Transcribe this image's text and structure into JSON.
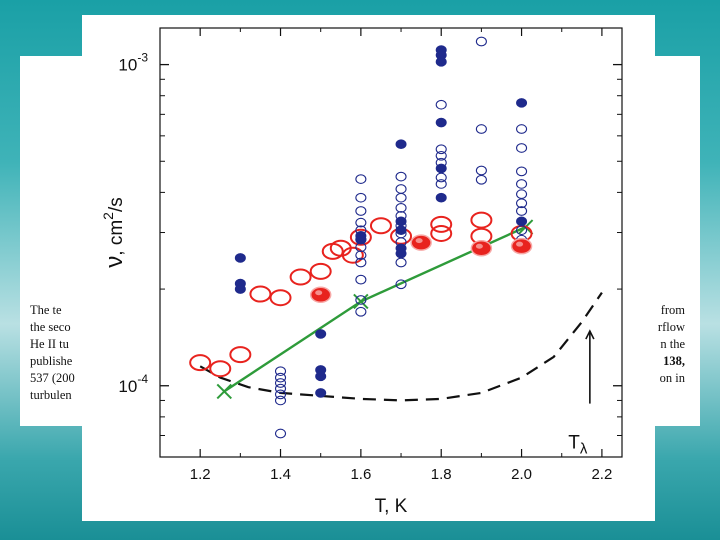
{
  "background_text": {
    "left_lines": [
      "The te",
      "the seco",
      "He II tu",
      "publishe",
      "537 (200",
      "turbulen"
    ],
    "right_lines": [
      "from",
      "rflow",
      "n the",
      "138,",
      "on in"
    ]
  },
  "chart_data": {
    "type": "scatter",
    "title": "",
    "xlabel": "T, K",
    "ylabel": "ν , cm²/s",
    "ylabel_parts": {
      "nu": "ν",
      "unit": ", cm",
      "exp": "2",
      "rest": "/s"
    },
    "xlim": [
      1.1,
      2.25
    ],
    "ylim": [
      6e-05,
      0.0013
    ],
    "yscale": "log",
    "x_ticks": [
      "1.2",
      "1.4",
      "1.6",
      "1.8",
      "2.0",
      "2.2"
    ],
    "x_tick_values": [
      1.2,
      1.4,
      1.6,
      1.8,
      2.0,
      2.2
    ],
    "y_ticks": [
      {
        "value": 0.0001,
        "mantissa": "10",
        "exp": "-4"
      },
      {
        "value": 0.001,
        "mantissa": "10",
        "exp": "-3"
      }
    ],
    "grid": false,
    "annotation": {
      "base": "T",
      "sub": "λ",
      "x": 2.17,
      "y": 8.5e-05
    },
    "colors": {
      "blue": "#1f2a8c",
      "red": "#e8231e",
      "green": "#2e9b3a",
      "dashed": "#111111"
    },
    "series": [
      {
        "style": "blue-filled",
        "points": [
          [
            1.3,
            0.00025
          ],
          [
            1.3,
            0.000208
          ],
          [
            1.3,
            0.0002
          ],
          [
            1.5,
            0.000145
          ],
          [
            1.5,
            0.000112
          ],
          [
            1.5,
            0.000107
          ],
          [
            1.5,
            9.5e-05
          ],
          [
            1.6,
            0.000293
          ],
          [
            1.6,
            0.000286
          ],
          [
            1.7,
            0.000565
          ],
          [
            1.7,
            0.000325
          ],
          [
            1.7,
            0.000305
          ],
          [
            1.7,
            0.000268
          ],
          [
            1.7,
            0.000258
          ],
          [
            1.8,
            0.00111
          ],
          [
            1.8,
            0.00107
          ],
          [
            1.8,
            0.00102
          ],
          [
            1.8,
            0.00066
          ],
          [
            1.8,
            0.000475
          ],
          [
            1.8,
            0.000385
          ],
          [
            2.0,
            0.00076
          ],
          [
            2.0,
            0.000325
          ]
        ]
      },
      {
        "style": "blue-open",
        "points": [
          [
            1.4,
            0.000111
          ],
          [
            1.4,
            0.000106
          ],
          [
            1.4,
            0.000102
          ],
          [
            1.4,
            9.8e-05
          ],
          [
            1.4,
            9.4e-05
          ],
          [
            1.4,
            9e-05
          ],
          [
            1.4,
            7.1e-05
          ],
          [
            1.6,
            0.00044
          ],
          [
            1.6,
            0.000385
          ],
          [
            1.6,
            0.00035
          ],
          [
            1.6,
            0.000322
          ],
          [
            1.6,
            0.000305
          ],
          [
            1.6,
            0.000285
          ],
          [
            1.6,
            0.00027
          ],
          [
            1.6,
            0.000255
          ],
          [
            1.6,
            0.000242
          ],
          [
            1.6,
            0.000214
          ],
          [
            1.6,
            0.000185
          ],
          [
            1.6,
            0.00017
          ],
          [
            1.7,
            0.000448
          ],
          [
            1.7,
            0.00041
          ],
          [
            1.7,
            0.000385
          ],
          [
            1.7,
            0.000358
          ],
          [
            1.7,
            0.000338
          ],
          [
            1.7,
            0.000315
          ],
          [
            1.7,
            0.000298
          ],
          [
            1.7,
            0.00028
          ],
          [
            1.7,
            0.000242
          ],
          [
            1.7,
            0.000207
          ],
          [
            1.8,
            0.00075
          ],
          [
            1.8,
            0.000545
          ],
          [
            1.8,
            0.00052
          ],
          [
            1.8,
            0.000495
          ],
          [
            1.8,
            0.000445
          ],
          [
            1.8,
            0.000425
          ],
          [
            1.9,
            0.00118
          ],
          [
            1.9,
            0.00063
          ],
          [
            1.9,
            0.000468
          ],
          [
            1.9,
            0.000438
          ],
          [
            2.0,
            0.00063
          ],
          [
            2.0,
            0.00055
          ],
          [
            2.0,
            0.000465
          ],
          [
            2.0,
            0.000425
          ],
          [
            2.0,
            0.000395
          ],
          [
            2.0,
            0.00037
          ],
          [
            2.0,
            0.00035
          ],
          [
            2.0,
            0.000305
          ],
          [
            2.0,
            0.000285
          ],
          [
            2.0,
            0.000268
          ]
        ]
      },
      {
        "style": "red-open",
        "points": [
          [
            1.2,
            0.000118
          ],
          [
            1.25,
            0.000113
          ],
          [
            1.3,
            0.000125
          ],
          [
            1.35,
            0.000193
          ],
          [
            1.4,
            0.000188
          ],
          [
            1.45,
            0.000218
          ],
          [
            1.5,
            0.000227
          ],
          [
            1.53,
            0.000262
          ],
          [
            1.55,
            0.000268
          ],
          [
            1.58,
            0.000255
          ],
          [
            1.6,
            0.00029
          ],
          [
            1.65,
            0.000315
          ],
          [
            1.7,
            0.000292
          ],
          [
            1.8,
            0.000318
          ],
          [
            1.8,
            0.000298
          ],
          [
            1.9,
            0.000328
          ],
          [
            1.9,
            0.000292
          ],
          [
            2.0,
            0.000298
          ]
        ]
      },
      {
        "style": "red-filled",
        "points": [
          [
            1.5,
            0.000192
          ],
          [
            1.75,
            0.000279
          ],
          [
            1.9,
            0.000268
          ],
          [
            2.0,
            0.000272
          ]
        ]
      },
      {
        "style": "green-line-x",
        "points": [
          [
            1.26,
            9.6e-05
          ],
          [
            1.6,
            0.000183
          ],
          [
            2.01,
            0.000312
          ]
        ]
      },
      {
        "style": "black-dashed",
        "points": [
          [
            1.2,
            0.000115
          ],
          [
            1.25,
            0.000106
          ],
          [
            1.32,
            9.9e-05
          ],
          [
            1.4,
            9.5e-05
          ],
          [
            1.5,
            9.3e-05
          ],
          [
            1.6,
            9.1e-05
          ],
          [
            1.7,
            9e-05
          ],
          [
            1.8,
            9.1e-05
          ],
          [
            1.9,
            9.5e-05
          ],
          [
            2.0,
            0.000106
          ],
          [
            2.08,
            0.000123
          ],
          [
            2.15,
            0.000158
          ],
          [
            2.2,
            0.000195
          ]
        ]
      }
    ]
  }
}
